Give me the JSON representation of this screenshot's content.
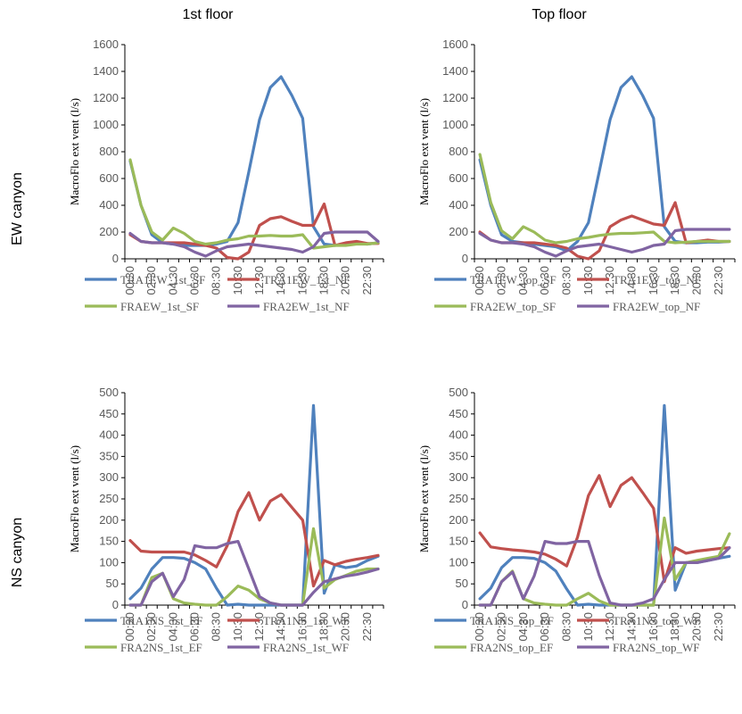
{
  "col_titles": [
    "1st floor",
    "Top floor"
  ],
  "row_titles": [
    "EW canyon",
    "NS canyon"
  ],
  "colors": {
    "blue": "#4f81bd",
    "red": "#c0504d",
    "green": "#9bbb59",
    "purple": "#8064a2"
  },
  "chart_data": [
    {
      "type": "line",
      "ylabel": "MacroFlo ext vent (l/s)",
      "ylim": [
        0,
        1600
      ],
      "yticks": [
        0,
        200,
        400,
        600,
        800,
        1000,
        1200,
        1400,
        1600
      ],
      "xticks": [
        "00:30",
        "02:30",
        "04:30",
        "06:30",
        "08:30",
        "10:30",
        "12:30",
        "14:30",
        "16:30",
        "18:30",
        "20:30",
        "22:30"
      ],
      "x": [
        "00:30",
        "01:30",
        "02:30",
        "03:30",
        "04:30",
        "05:30",
        "06:30",
        "07:30",
        "08:30",
        "09:30",
        "10:30",
        "11:30",
        "12:30",
        "13:30",
        "14:30",
        "15:30",
        "16:30",
        "17:30",
        "18:30",
        "19:30",
        "20:30",
        "21:30",
        "22:30",
        "23:30"
      ],
      "series": [
        {
          "name": "TRA1EW_1st_SF",
          "color": "#4f81bd",
          "values": [
            730,
            400,
            180,
            120,
            110,
            100,
            100,
            100,
            110,
            130,
            270,
            650,
            1040,
            1280,
            1360,
            1220,
            1050,
            240,
            110,
            100,
            110,
            115,
            110,
            120
          ]
        },
        {
          "name": "TRA1EW_1st_NF",
          "color": "#c0504d",
          "values": [
            180,
            130,
            120,
            120,
            120,
            120,
            110,
            100,
            80,
            10,
            0,
            50,
            250,
            300,
            315,
            280,
            250,
            250,
            410,
            100,
            120,
            130,
            115,
            115
          ]
        },
        {
          "name": "FRAEW_1st_SF",
          "color": "#9bbb59",
          "values": [
            740,
            400,
            200,
            140,
            230,
            190,
            130,
            110,
            120,
            140,
            150,
            170,
            170,
            175,
            170,
            170,
            180,
            80,
            90,
            100,
            100,
            110,
            110,
            120
          ]
        },
        {
          "name": "FRA2EW_1st_NF",
          "color": "#8064a2",
          "values": [
            190,
            130,
            120,
            120,
            110,
            90,
            50,
            20,
            60,
            90,
            100,
            110,
            100,
            90,
            80,
            70,
            50,
            90,
            190,
            200,
            200,
            200,
            200,
            130
          ]
        }
      ]
    },
    {
      "type": "line",
      "ylabel": "MacroFlo ext vent (l/s)",
      "ylim": [
        0,
        1600
      ],
      "yticks": [
        0,
        200,
        400,
        600,
        800,
        1000,
        1200,
        1400,
        1600
      ],
      "xticks": [
        "00:30",
        "02:30",
        "04:30",
        "06:30",
        "08:30",
        "10:30",
        "12:30",
        "14:30",
        "16:30",
        "18:30",
        "20:30",
        "22:30"
      ],
      "x": [
        "00:30",
        "01:30",
        "02:30",
        "03:30",
        "04:30",
        "05:30",
        "06:30",
        "07:30",
        "08:30",
        "09:30",
        "10:30",
        "11:30",
        "12:30",
        "13:30",
        "14:30",
        "15:30",
        "16:30",
        "17:30",
        "18:30",
        "19:30",
        "20:30",
        "21:30",
        "22:30",
        "23:30"
      ],
      "series": [
        {
          "name": "TRA1EW_top_SF",
          "color": "#4f81bd",
          "values": [
            740,
            400,
            180,
            130,
            120,
            110,
            100,
            90,
            60,
            130,
            270,
            650,
            1040,
            1280,
            1360,
            1220,
            1050,
            240,
            130,
            120,
            120,
            125,
            125,
            130
          ]
        },
        {
          "name": "TRA1EW_top_NF",
          "color": "#c0504d",
          "values": [
            200,
            140,
            120,
            120,
            120,
            120,
            110,
            100,
            80,
            20,
            0,
            60,
            240,
            290,
            320,
            290,
            260,
            250,
            420,
            120,
            130,
            140,
            130,
            130
          ]
        },
        {
          "name": "FRA2EW_top_SF",
          "color": "#9bbb59",
          "values": [
            780,
            420,
            210,
            150,
            240,
            200,
            140,
            120,
            130,
            150,
            160,
            175,
            185,
            190,
            190,
            195,
            200,
            130,
            120,
            125,
            130,
            130,
            130,
            130
          ]
        },
        {
          "name": "FRA2EW_top_NF",
          "color": "#8064a2",
          "values": [
            190,
            140,
            120,
            120,
            110,
            90,
            50,
            20,
            60,
            90,
            100,
            110,
            90,
            70,
            50,
            70,
            100,
            110,
            210,
            220,
            220,
            220,
            220,
            220
          ]
        }
      ]
    },
    {
      "type": "line",
      "ylabel": "MacroFlo ext vent (l/s)",
      "ylim": [
        0,
        500
      ],
      "yticks": [
        0,
        50,
        100,
        150,
        200,
        250,
        300,
        350,
        400,
        450,
        500
      ],
      "xticks": [
        "00:30",
        "02:30",
        "04:30",
        "06:30",
        "08:30",
        "10:30",
        "12:30",
        "14:30",
        "16:30",
        "18:30",
        "20:30",
        "22:30"
      ],
      "x": [
        "00:30",
        "01:30",
        "02:30",
        "03:30",
        "04:30",
        "05:30",
        "06:30",
        "07:30",
        "08:30",
        "09:30",
        "10:30",
        "11:30",
        "12:30",
        "13:30",
        "14:30",
        "15:30",
        "16:30",
        "17:30",
        "18:30",
        "19:30",
        "20:30",
        "21:30",
        "22:30",
        "23:30"
      ],
      "series": [
        {
          "name": "TRA1NS_1st_EF",
          "color": "#4f81bd",
          "values": [
            15,
            40,
            85,
            112,
            112,
            110,
            100,
            85,
            40,
            0,
            2,
            0,
            0,
            0,
            0,
            0,
            0,
            470,
            28,
            95,
            88,
            92,
            105,
            115
          ]
        },
        {
          "name": "TRA1NS_1st_WF",
          "color": "#c0504d",
          "values": [
            152,
            127,
            125,
            125,
            125,
            125,
            118,
            105,
            90,
            140,
            220,
            265,
            200,
            245,
            260,
            230,
            200,
            45,
            105,
            95,
            103,
            108,
            112,
            117
          ]
        },
        {
          "name": "FRA2NS_1st_EF",
          "color": "#9bbb59",
          "values": [
            0,
            0,
            65,
            75,
            15,
            5,
            2,
            0,
            0,
            20,
            45,
            35,
            15,
            5,
            0,
            0,
            0,
            180,
            40,
            60,
            70,
            80,
            85,
            85
          ]
        },
        {
          "name": "FRA2NS_1st_WF",
          "color": "#8064a2",
          "values": [
            0,
            0,
            55,
            75,
            20,
            60,
            140,
            135,
            135,
            145,
            150,
            85,
            20,
            5,
            0,
            0,
            0,
            30,
            55,
            62,
            68,
            72,
            78,
            85
          ]
        }
      ]
    },
    {
      "type": "line",
      "ylabel": "MacroFlo ext vent (l/s)",
      "ylim": [
        0,
        500
      ],
      "yticks": [
        0,
        50,
        100,
        150,
        200,
        250,
        300,
        350,
        400,
        450,
        500
      ],
      "xticks": [
        "00:30",
        "02:30",
        "04:30",
        "06:30",
        "08:30",
        "10:30",
        "12:30",
        "14:30",
        "16:30",
        "18:30",
        "20:30",
        "22:30"
      ],
      "x": [
        "00:30",
        "01:30",
        "02:30",
        "03:30",
        "04:30",
        "05:30",
        "06:30",
        "07:30",
        "08:30",
        "09:30",
        "10:30",
        "11:30",
        "12:30",
        "13:30",
        "14:30",
        "15:30",
        "16:30",
        "17:30",
        "18:30",
        "19:30",
        "20:30",
        "21:30",
        "22:30",
        "23:30"
      ],
      "series": [
        {
          "name": "TRA1NS_top_EF",
          "color": "#4f81bd",
          "values": [
            15,
            40,
            88,
            112,
            112,
            110,
            100,
            80,
            38,
            0,
            2,
            0,
            0,
            0,
            0,
            0,
            0,
            470,
            35,
            100,
            100,
            105,
            110,
            115
          ]
        },
        {
          "name": "TRA1NS_top_WF",
          "color": "#c0504d",
          "values": [
            170,
            137,
            133,
            130,
            128,
            125,
            120,
            108,
            92,
            160,
            258,
            305,
            232,
            282,
            300,
            265,
            228,
            55,
            135,
            122,
            127,
            130,
            133,
            135
          ]
        },
        {
          "name": "FRA2NS_top_EF",
          "color": "#9bbb59",
          "values": [
            0,
            0,
            55,
            80,
            15,
            5,
            2,
            0,
            0,
            15,
            28,
            10,
            0,
            0,
            0,
            0,
            0,
            205,
            60,
            100,
            105,
            110,
            115,
            168
          ]
        },
        {
          "name": "FRA2NS_top_WF",
          "color": "#8064a2",
          "values": [
            0,
            0,
            55,
            78,
            15,
            68,
            150,
            145,
            145,
            150,
            150,
            70,
            5,
            0,
            0,
            5,
            15,
            60,
            100,
            100,
            100,
            105,
            110,
            135
          ]
        }
      ]
    }
  ]
}
